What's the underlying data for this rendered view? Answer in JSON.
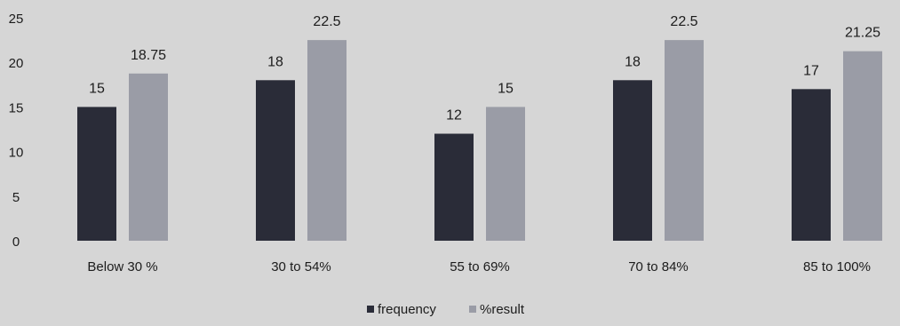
{
  "chart_data": {
    "type": "bar",
    "categories": [
      "Below 30 %",
      "30 to 54%",
      "55 to 69%",
      "70 to 84%",
      "85 to 100%"
    ],
    "series": [
      {
        "name": "frequency",
        "values": [
          15,
          18,
          12,
          18,
          17
        ],
        "color": "#2a2c38"
      },
      {
        "name": "%result",
        "values": [
          18.75,
          22.5,
          15,
          22.5,
          21.25
        ],
        "color": "#9a9ca6"
      }
    ],
    "y_ticks": [
      "0",
      "5",
      "10",
      "15",
      "20",
      "25"
    ],
    "ylim": [
      0,
      25
    ],
    "data_labels": [
      [
        "15",
        "18",
        "12",
        "18",
        "17"
      ],
      [
        "18.75",
        "22.5",
        "15",
        "22.5",
        "21.25"
      ]
    ],
    "grid": false,
    "legend_position": "bottom-center"
  }
}
